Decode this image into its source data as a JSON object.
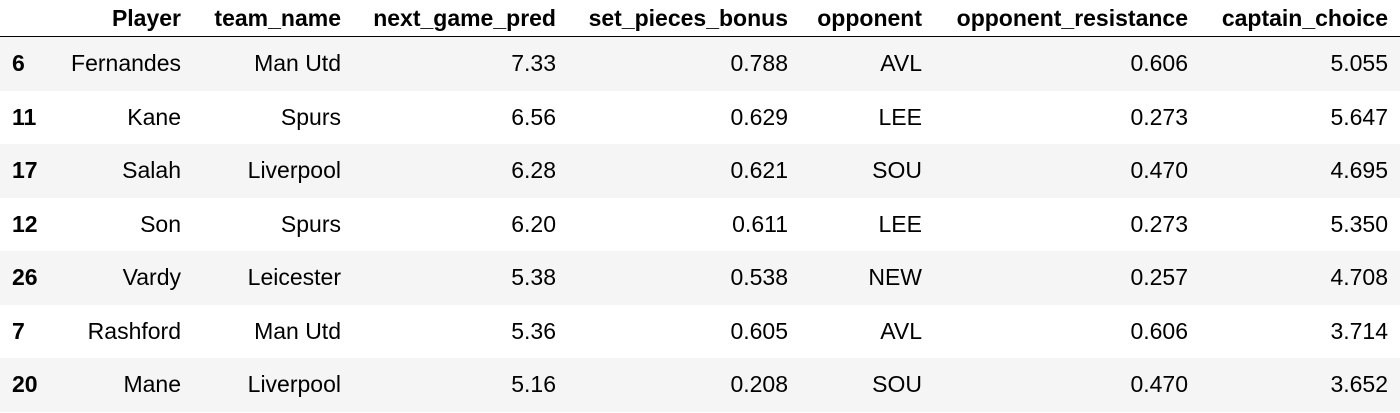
{
  "table": {
    "index_header": "",
    "columns": [
      "Player",
      "team_name",
      "next_game_pred",
      "set_pieces_bonus",
      "opponent",
      "opponent_resistance",
      "captain_choice"
    ],
    "rows": [
      {
        "index": "6",
        "cells": [
          "Fernandes",
          "Man Utd",
          "7.33",
          "0.788",
          "AVL",
          "0.606",
          "5.055"
        ]
      },
      {
        "index": "11",
        "cells": [
          "Kane",
          "Spurs",
          "6.56",
          "0.629",
          "LEE",
          "0.273",
          "5.647"
        ]
      },
      {
        "index": "17",
        "cells": [
          "Salah",
          "Liverpool",
          "6.28",
          "0.621",
          "SOU",
          "0.470",
          "4.695"
        ]
      },
      {
        "index": "12",
        "cells": [
          "Son",
          "Spurs",
          "6.20",
          "0.611",
          "LEE",
          "0.273",
          "5.350"
        ]
      },
      {
        "index": "26",
        "cells": [
          "Vardy",
          "Leicester",
          "5.38",
          "0.538",
          "NEW",
          "0.257",
          "4.708"
        ]
      },
      {
        "index": "7",
        "cells": [
          "Rashford",
          "Man Utd",
          "5.36",
          "0.605",
          "AVL",
          "0.606",
          "3.714"
        ]
      },
      {
        "index": "20",
        "cells": [
          "Mane",
          "Liverpool",
          "5.16",
          "0.208",
          "SOU",
          "0.470",
          "3.652"
        ]
      }
    ]
  },
  "colors": {
    "row_stripe": "#f5f5f5",
    "background": "#ffffff",
    "text": "#000000",
    "header_rule": "#000000"
  }
}
